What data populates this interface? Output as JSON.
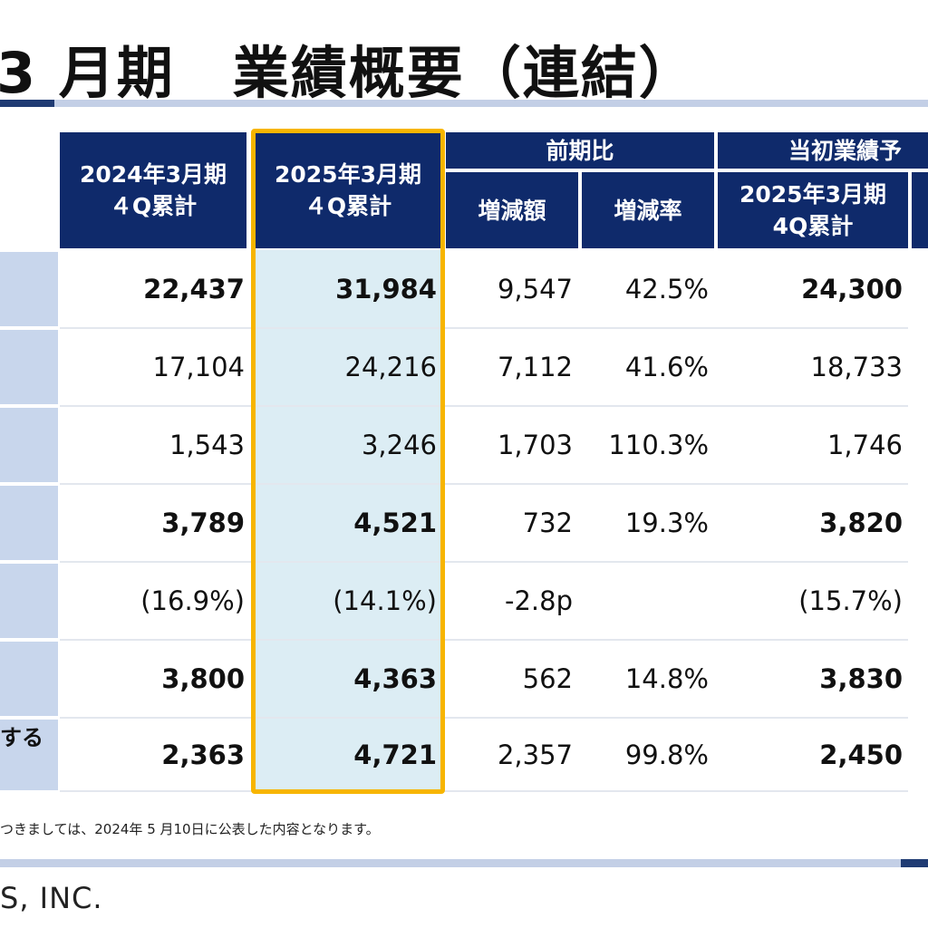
{
  "title": "3 月期　業績概要（連結）",
  "table": {
    "headers": {
      "fy2024": [
        "2024年3月期",
        "４Q累計"
      ],
      "fy2025": [
        "2025年3月期",
        "４Q累計"
      ],
      "yoy_group": "前期比",
      "yoy_amount": "増減額",
      "yoy_rate": "増減率",
      "forecast_group": "当初業績予",
      "forecast_fy2025": [
        "2025年3月期",
        "4Q累計"
      ]
    },
    "rows": [
      {
        "fy2024": "22,437",
        "fy2025": "31,984",
        "diff": "9,547",
        "rate": "42.5%",
        "forecast": "24,300",
        "bold": true
      },
      {
        "fy2024": "17,104",
        "fy2025": "24,216",
        "diff": "7,112",
        "rate": "41.6%",
        "forecast": "18,733",
        "bold": false
      },
      {
        "fy2024": "1,543",
        "fy2025": "3,246",
        "diff": "1,703",
        "rate": "110.3%",
        "forecast": "1,746",
        "bold": false
      },
      {
        "fy2024": "3,789",
        "fy2025": "4,521",
        "diff": "732",
        "rate": "19.3%",
        "forecast": "3,820",
        "bold": true
      },
      {
        "fy2024": "(16.9%)",
        "fy2025": "(14.1%)",
        "diff": "-2.8p",
        "rate": "",
        "forecast": "(15.7%)",
        "bold": false
      },
      {
        "fy2024": "3,800",
        "fy2025": "4,363",
        "diff": "562",
        "rate": "14.8%",
        "forecast": "3,830",
        "bold": true
      },
      {
        "fy2024": "2,363",
        "fy2025": "4,721",
        "diff": "2,357",
        "rate": "99.8%",
        "forecast": "2,450",
        "bold": true
      }
    ],
    "label_fragment": "する"
  },
  "footnote": "つきましては、2024年 5 月10日に公表した内容となります。",
  "company": "S, INC.",
  "colors": {
    "header_navy": "#0f2a6b",
    "label_blue": "#c8d6ec",
    "highlight_fill": "#dcedf4",
    "highlight_border": "#f7b500"
  }
}
